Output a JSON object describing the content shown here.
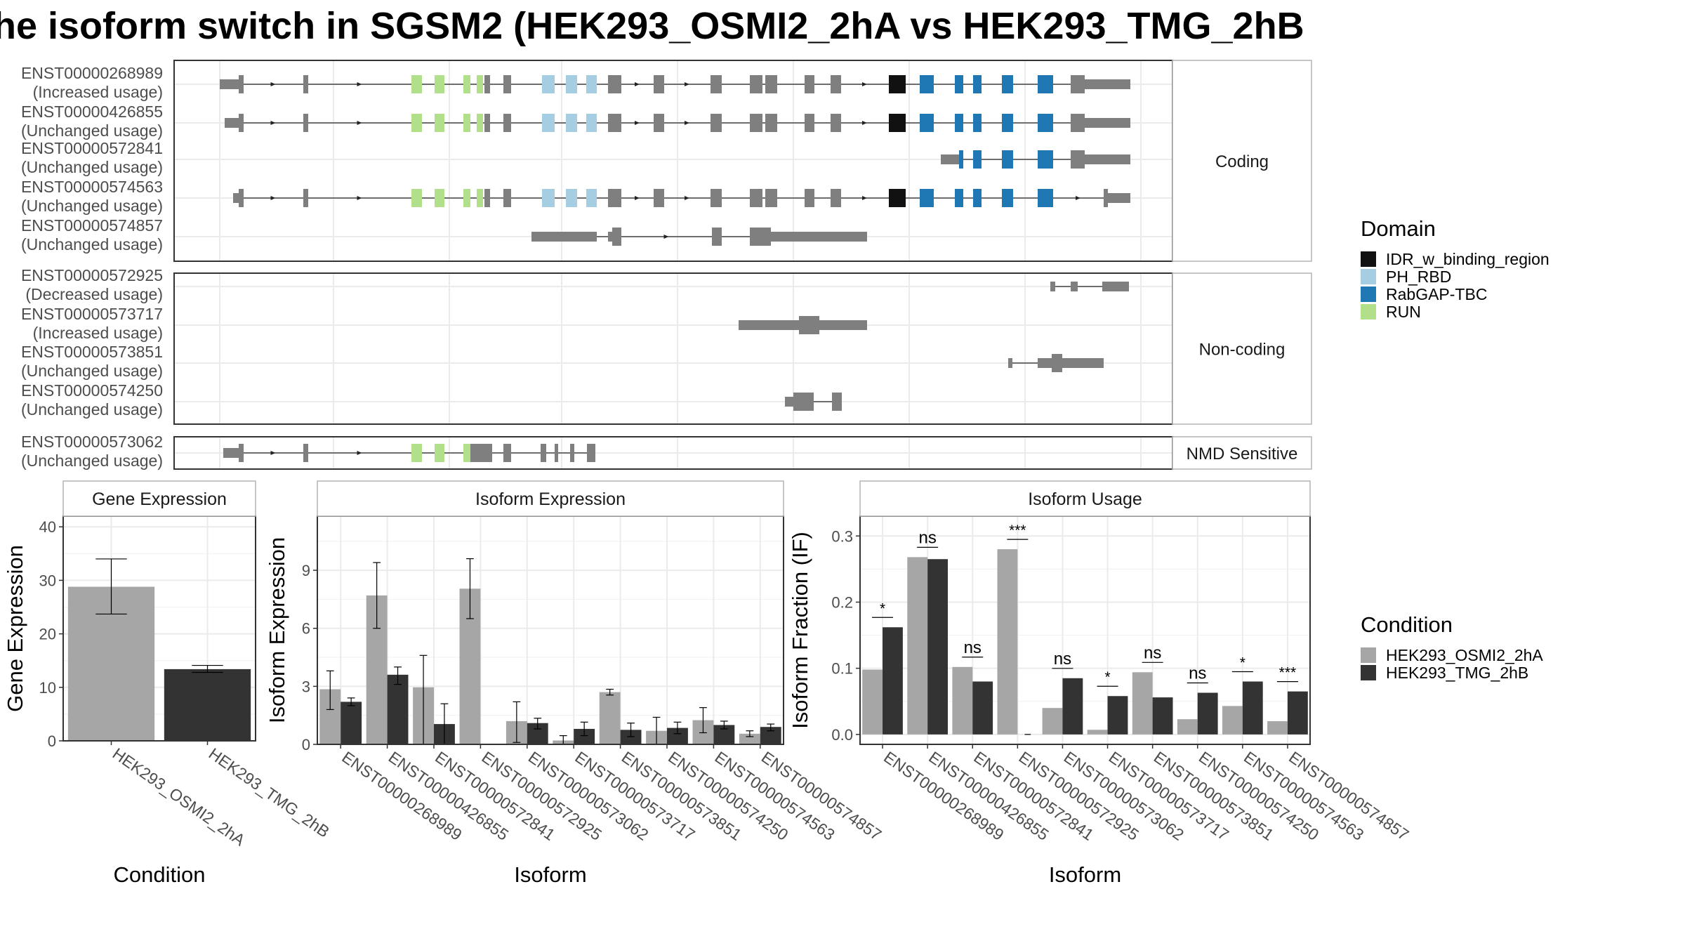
{
  "title": "he isoform switch in SGSM2 (HEK293_OSMI2_2hA vs HEK293_TMG_2hB",
  "structure": {
    "panels": [
      {
        "label": "Coding",
        "transcripts": [
          {
            "id": "ENST00000268989",
            "usage": "(Increased usage)"
          },
          {
            "id": "ENST00000426855",
            "usage": "(Unchanged usage)"
          },
          {
            "id": "ENST00000572841",
            "usage": "(Unchanged usage)"
          },
          {
            "id": "ENST00000574563",
            "usage": "(Unchanged usage)"
          },
          {
            "id": "ENST00000574857",
            "usage": "(Unchanged usage)"
          }
        ]
      },
      {
        "label": "Non-coding",
        "transcripts": [
          {
            "id": "ENST00000572925",
            "usage": "(Decreased usage)"
          },
          {
            "id": "ENST00000573717",
            "usage": "(Increased usage)"
          },
          {
            "id": "ENST00000573851",
            "usage": "(Unchanged usage)"
          },
          {
            "id": "ENST00000574250",
            "usage": "(Unchanged usage)"
          }
        ]
      },
      {
        "label": "NMD Sensitive",
        "transcripts": [
          {
            "id": "ENST00000573062",
            "usage": "(Unchanged usage)"
          }
        ]
      }
    ]
  },
  "domain_legend": {
    "title": "Domain",
    "items": [
      {
        "name": "IDR_w_binding_region",
        "color": "#111111"
      },
      {
        "name": "PH_RBD",
        "color": "#a6cee3"
      },
      {
        "name": "RabGAP-TBC",
        "color": "#1f78b4"
      },
      {
        "name": "RUN",
        "color": "#b2df8a"
      }
    ]
  },
  "condition_legend": {
    "title": "Condition",
    "items": [
      {
        "name": "HEK293_OSMI2_2hA",
        "color": "#a6a6a6"
      },
      {
        "name": "HEK293_TMG_2hB",
        "color": "#333333"
      }
    ]
  },
  "chart_data": [
    {
      "type": "bar",
      "title": "Gene Expression",
      "xlabel": "Condition",
      "ylabel": "Gene Expression",
      "ylim": [
        0,
        42
      ],
      "yticks": [
        0,
        10,
        20,
        30,
        40
      ],
      "categories": [
        "HEK293_OSMI2_2hA",
        "HEK293_TMG_2hB"
      ],
      "values": [
        28.8,
        13.4
      ],
      "errors": [
        [
          23.7,
          34.0
        ],
        [
          12.8,
          14.1
        ]
      ]
    },
    {
      "type": "bar",
      "title": "Isoform Expression",
      "xlabel": "Isoform",
      "ylabel": "Isoform Expression",
      "ylim": [
        0,
        11.8
      ],
      "yticks": [
        0,
        3,
        6,
        9
      ],
      "categories": [
        "ENST00000268989",
        "ENST00000426855",
        "ENST00000572841",
        "ENST00000572925",
        "ENST00000573062",
        "ENST00000573717",
        "ENST00000573851",
        "ENST00000574250",
        "ENST00000574563",
        "ENST00000574857"
      ],
      "series": [
        {
          "name": "HEK293_OSMI2_2hA",
          "values": [
            2.85,
            7.7,
            2.95,
            8.05,
            1.2,
            0.2,
            2.7,
            0.7,
            1.25,
            0.55
          ],
          "errors": [
            [
              1.8,
              3.8
            ],
            [
              6.0,
              9.4
            ],
            [
              0.0,
              4.6
            ],
            [
              6.5,
              9.6
            ],
            [
              0.1,
              2.2
            ],
            [
              0.0,
              0.45
            ],
            [
              2.55,
              2.85
            ],
            [
              0.0,
              1.4
            ],
            [
              0.6,
              1.9
            ],
            [
              0.4,
              0.7
            ]
          ]
        },
        {
          "name": "HEK293_TMG_2hB",
          "values": [
            2.2,
            3.6,
            1.05,
            0.0,
            1.1,
            0.8,
            0.75,
            0.85,
            1.0,
            0.9
          ],
          "errors": [
            [
              2.0,
              2.4
            ],
            [
              3.1,
              4.0
            ],
            [
              0.0,
              2.1
            ],
            [
              0.0,
              0.0
            ],
            [
              0.8,
              1.35
            ],
            [
              0.45,
              1.15
            ],
            [
              0.4,
              1.1
            ],
            [
              0.55,
              1.15
            ],
            [
              0.8,
              1.2
            ],
            [
              0.7,
              1.05
            ]
          ]
        }
      ]
    },
    {
      "type": "bar",
      "title": "Isoform Usage",
      "xlabel": "Isoform",
      "ylabel": "Isoform Fraction (IF)",
      "ylim": [
        -0.015,
        0.33
      ],
      "yticks": [
        0.0,
        0.1,
        0.2,
        0.3
      ],
      "ytick_labels": [
        "0.0",
        "0.1",
        "0.2",
        "0.3"
      ],
      "categories": [
        "ENST00000268989",
        "ENST00000426855",
        "ENST00000572841",
        "ENST00000572925",
        "ENST00000573062",
        "ENST00000573717",
        "ENST00000573851",
        "ENST00000574250",
        "ENST00000574563",
        "ENST00000574857"
      ],
      "series": [
        {
          "name": "HEK293_OSMI2_2hA",
          "values": [
            0.098,
            0.268,
            0.102,
            0.28,
            0.04,
            0.007,
            0.094,
            0.023,
            0.043,
            0.02
          ]
        },
        {
          "name": "HEK293_TMG_2hB",
          "values": [
            0.162,
            0.265,
            0.08,
            0.0,
            0.085,
            0.058,
            0.056,
            0.063,
            0.08,
            0.065
          ]
        }
      ],
      "significance": [
        "*",
        "ns",
        "ns",
        "***",
        "ns",
        "*",
        "ns",
        "ns",
        "*",
        "***"
      ]
    }
  ]
}
